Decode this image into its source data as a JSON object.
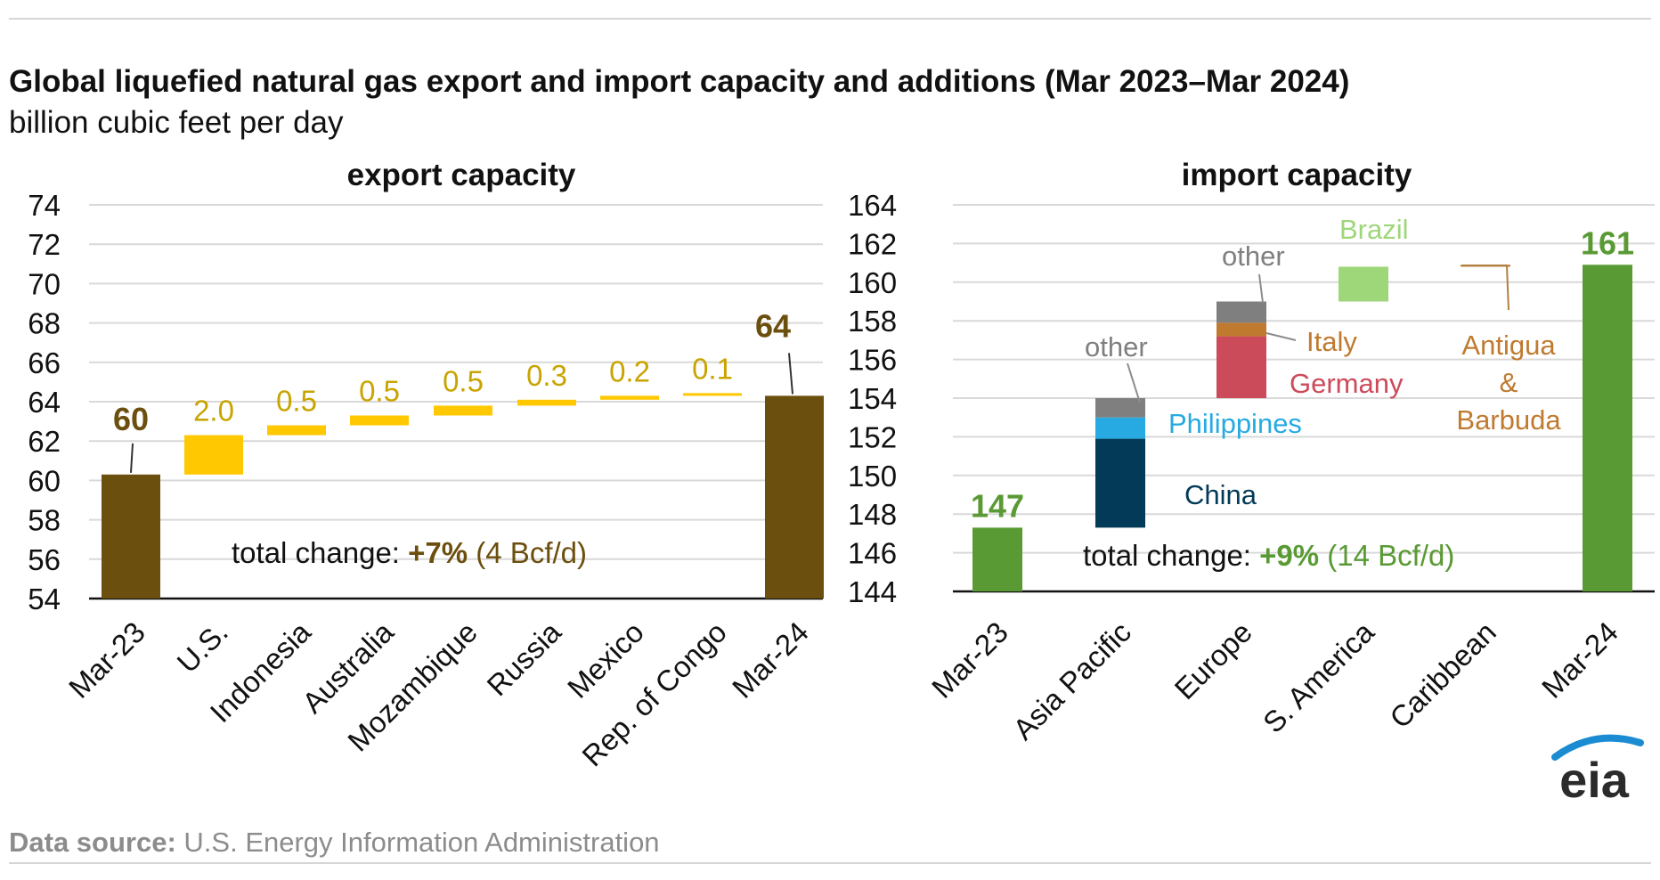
{
  "title": "Global liquefied natural gas export and import capacity and additions (Mar 2023–Mar 2024)",
  "subtitle": "billion cubic feet per day",
  "source": {
    "label": "Data source:",
    "text": "U.S. Energy Information Administration"
  },
  "logo_text": "eia",
  "colors": {
    "export_total": "#6b4f0e",
    "export_add": "#ffc800",
    "export_label": "#c9a400",
    "import_total": "#5a9a34",
    "china": "#033a57",
    "philippines": "#27aae1",
    "other": "#7f7f7f",
    "germany": "#cc4b5b",
    "italy": "#c07a30",
    "brazil": "#9ed67a",
    "grid": "#d9d9d9"
  },
  "chart_data": [
    {
      "type": "bar",
      "subtype": "waterfall",
      "title": "export capacity",
      "categories": [
        "Mar-23",
        "U.S.",
        "Indonesia",
        "Australia",
        "Mozambique",
        "Russia",
        "Mexico",
        "Rep. of Congo",
        "Mar-24"
      ],
      "totals": {
        "Mar-23": 60.3,
        "Mar-24": 64.3
      },
      "additions": {
        "U.S.": 2.0,
        "Indonesia": 0.5,
        "Australia": 0.5,
        "Mozambique": 0.5,
        "Russia": 0.3,
        "Mexico": 0.2,
        "Rep. of Congo": 0.1
      },
      "value_labels": [
        "60",
        "2.0",
        "0.5",
        "0.5",
        "0.5",
        "0.3",
        "0.2",
        "0.1",
        "64"
      ],
      "ylim": [
        54,
        74
      ],
      "yticks": [
        54,
        56,
        58,
        60,
        62,
        64,
        66,
        68,
        70,
        72,
        74
      ],
      "annotation": {
        "prefix": "total change: ",
        "pct": "+7%",
        "abs": " (4 Bcf/d)"
      },
      "grid": true
    },
    {
      "type": "bar",
      "subtype": "stacked waterfall",
      "title": "import capacity",
      "categories": [
        "Mar-23",
        "Asia Pacific",
        "Europe",
        "S. America",
        "Caribbean",
        "Mar-24"
      ],
      "totals": {
        "Mar-23": 147.3,
        "Mar-24": 160.9
      },
      "additions": {
        "Asia Pacific": [
          {
            "name": "China",
            "value": 4.6
          },
          {
            "name": "Philippines",
            "value": 1.1
          },
          {
            "name": "other",
            "value": 1.0
          }
        ],
        "Europe": [
          {
            "name": "Germany",
            "value": 3.2
          },
          {
            "name": "Italy",
            "value": 0.7
          },
          {
            "name": "other",
            "value": 1.1
          }
        ],
        "S. America": [
          {
            "name": "Brazil",
            "value": 1.8
          }
        ],
        "Caribbean": [
          {
            "name": "Antigua & Barbuda",
            "value": 0.1
          }
        ]
      },
      "segment_labels": [
        "China",
        "Philippines",
        "other",
        "Germany",
        "Italy",
        "other",
        "Brazil"
      ],
      "antigua_label": [
        "Antigua",
        "&",
        "Barbuda"
      ],
      "value_labels": [
        "147",
        "161"
      ],
      "ylim": [
        144,
        164
      ],
      "yticks": [
        144,
        146,
        148,
        150,
        152,
        154,
        156,
        158,
        160,
        162,
        164
      ],
      "annotation": {
        "prefix": "total change: ",
        "pct": "+9%",
        "abs": " (14 Bcf/d)"
      },
      "grid": true
    }
  ]
}
